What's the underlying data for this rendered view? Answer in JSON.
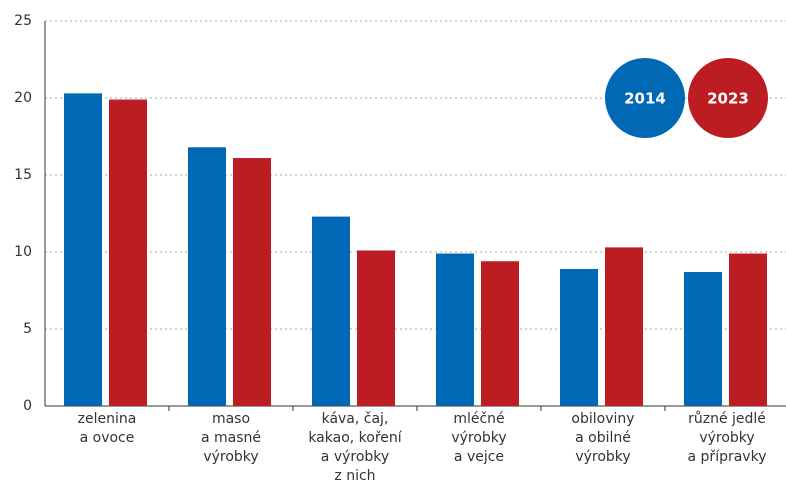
{
  "chart_data": {
    "type": "bar",
    "categories": [
      [
        "zelenina",
        "a ovoce"
      ],
      [
        "maso",
        "a masné",
        "výrobky"
      ],
      [
        "káva, čaj,",
        "kakao, koření",
        "a výrobky",
        "z nich"
      ],
      [
        "mléčné",
        "výrobky",
        "a vejce"
      ],
      [
        "obiloviny",
        "a obilné",
        "výrobky"
      ],
      [
        "různé jedlé",
        "výrobky",
        "a přípravky"
      ]
    ],
    "series": [
      {
        "name": "2014",
        "color": "#0068b4",
        "values": [
          20.3,
          16.8,
          12.3,
          9.9,
          8.9,
          8.7
        ]
      },
      {
        "name": "2023",
        "color": "#bb1d23",
        "values": [
          19.9,
          16.1,
          10.1,
          9.4,
          10.3,
          9.9
        ]
      }
    ],
    "ylim": [
      0,
      25
    ],
    "yticks": [
      0,
      5,
      10,
      15,
      20,
      25
    ],
    "grid": true
  }
}
